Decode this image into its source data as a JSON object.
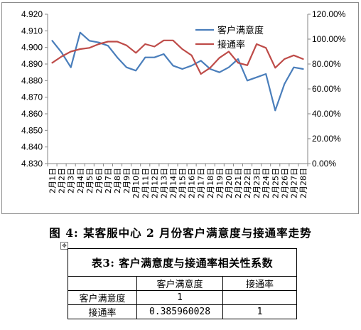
{
  "chart_data": {
    "type": "line",
    "categories": [
      "2月1日",
      "2月2日",
      "2月3日",
      "2月4日",
      "2月5日",
      "2月6日",
      "2月7日",
      "2月8日",
      "2月9日",
      "2月10日",
      "2月11日",
      "2月12日",
      "2月13日",
      "2月14日",
      "2月15日",
      "2月16日",
      "2月17日",
      "2月18日",
      "2月19日",
      "2月20日",
      "2月21日",
      "2月22日",
      "2月23日",
      "2月24日",
      "2月25日",
      "2月26日",
      "2月27日",
      "2月28日"
    ],
    "y_left": {
      "ylim": [
        4.83,
        4.92
      ],
      "ticks": [
        "4.830",
        "4.840",
        "4.850",
        "4.860",
        "4.870",
        "4.880",
        "4.890",
        "4.900",
        "4.910",
        "4.920"
      ]
    },
    "y_right": {
      "ylim": [
        0,
        120
      ],
      "ticks": [
        "0.00%",
        "20.00%",
        "40.00%",
        "60.00%",
        "80.00%",
        "100.00%",
        "120.00%"
      ]
    },
    "series": [
      {
        "name": "客户满意度",
        "axis": "left",
        "color": "#4a7ebb",
        "values": [
          4.904,
          4.897,
          4.888,
          4.909,
          4.904,
          4.903,
          4.901,
          4.894,
          4.888,
          4.886,
          4.894,
          4.894,
          4.896,
          4.889,
          4.887,
          4.889,
          4.892,
          4.887,
          4.885,
          4.888,
          4.893,
          4.88,
          4.882,
          4.884,
          4.862,
          4.878,
          4.888,
          4.887
        ]
      },
      {
        "name": "接通率",
        "axis": "right",
        "color": "#be4b48",
        "values": [
          81,
          86,
          90,
          92,
          93,
          96,
          98,
          98,
          95,
          89,
          96,
          94,
          99,
          99,
          92,
          87,
          72,
          77,
          85,
          90,
          81,
          79,
          96,
          93,
          77,
          84,
          87,
          84
        ]
      }
    ],
    "legend_position": "top-right",
    "grid": false
  },
  "caption": "图 4:  某客服中心 2 月份客户满意度与接通率走势",
  "table": {
    "title": "表3: 客户满意度与接通率相关性系数",
    "headers": [
      "",
      "客户满意度",
      "接通率"
    ],
    "rows": [
      [
        "客户满意度",
        "1",
        ""
      ],
      [
        "接通率",
        "0.385960028",
        "1"
      ]
    ]
  },
  "anchor_icon_name": "move-anchor-icon"
}
